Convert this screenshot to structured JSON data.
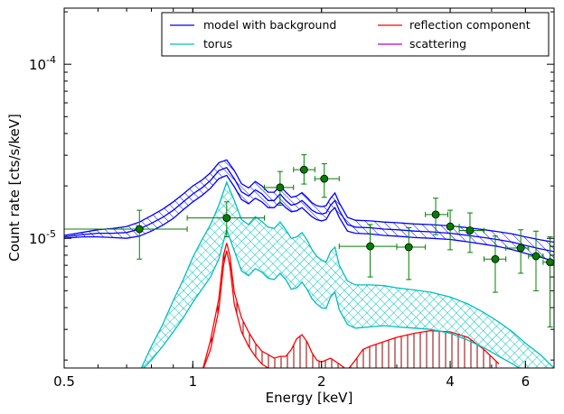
{
  "chart_data": {
    "type": "line",
    "xlabel": "Energy [keV]",
    "ylabel": "Count rate [cts/s/keV]",
    "xscale": "log",
    "yscale": "log",
    "xlim": [
      0.5,
      7.0
    ],
    "ylim": [
      1.8e-06,
      0.00021
    ],
    "x_ticks": [
      {
        "value": 0.5,
        "label": "0.5"
      },
      {
        "value": 1,
        "label": "1"
      },
      {
        "value": 2,
        "label": "2"
      },
      {
        "value": 4,
        "label": "4"
      },
      {
        "value": 6,
        "label": "6"
      }
    ],
    "y_ticks": [
      {
        "value": 1e-05,
        "base": "10",
        "exp": "-5"
      },
      {
        "value": 0.0001,
        "base": "10",
        "exp": "-4"
      }
    ],
    "legend": {
      "placement": "top-right",
      "columns": 2,
      "entries": [
        {
          "label": "model with background",
          "color": "#0000ff"
        },
        {
          "label": "reflection component",
          "color": "#ff0000"
        },
        {
          "label": "torus",
          "color": "#00bfbf"
        },
        {
          "label": "scattering",
          "color": "#bf00bf"
        }
      ]
    },
    "series": [
      {
        "key": "model",
        "color": "#0000ff",
        "hatch": "diagonal",
        "x": [
          0.5,
          0.55,
          0.6,
          0.65,
          0.7,
          0.75,
          0.8,
          0.85,
          0.9,
          0.95,
          1.0,
          1.05,
          1.1,
          1.15,
          1.2,
          1.25,
          1.3,
          1.35,
          1.4,
          1.45,
          1.5,
          1.55,
          1.6,
          1.65,
          1.7,
          1.75,
          1.8,
          1.85,
          1.9,
          1.95,
          2.0,
          2.05,
          2.1,
          2.15,
          2.2,
          2.3,
          2.4,
          2.6,
          2.8,
          3.0,
          3.3,
          3.6,
          4.0,
          4.4,
          4.8,
          5.2,
          5.6,
          6.0,
          6.5,
          7.0
        ],
        "mid": [
          1.02e-05,
          1.05e-05,
          1.07e-05,
          1.07e-05,
          1.08e-05,
          1.13e-05,
          1.22e-05,
          1.32e-05,
          1.45e-05,
          1.62e-05,
          1.8e-05,
          1.95e-05,
          2.15e-05,
          2.45e-05,
          2.55e-05,
          2.2e-05,
          1.85e-05,
          1.75e-05,
          1.9e-05,
          1.8e-05,
          1.65e-05,
          1.65e-05,
          1.8e-05,
          1.65e-05,
          1.55e-05,
          1.58e-05,
          1.65e-05,
          1.55e-05,
          1.45e-05,
          1.4e-05,
          1.38e-05,
          1.4e-05,
          1.55e-05,
          1.65e-05,
          1.45e-05,
          1.2e-05,
          1.16e-05,
          1.15e-05,
          1.13e-05,
          1.12e-05,
          1.1e-05,
          1.09e-05,
          1.07e-05,
          1.04e-05,
          1.01e-05,
          9.8e-06,
          9.5e-06,
          9.1e-06,
          8.7e-06,
          8.4e-06
        ],
        "lo": [
          1e-05,
          1.02e-05,
          1.02e-05,
          1.01e-05,
          1e-05,
          1.03e-05,
          1.1e-05,
          1.19e-05,
          1.3e-05,
          1.46e-05,
          1.62e-05,
          1.76e-05,
          1.94e-05,
          2.2e-05,
          2.3e-05,
          1.98e-05,
          1.67e-05,
          1.58e-05,
          1.7e-05,
          1.62e-05,
          1.5e-05,
          1.5e-05,
          1.62e-05,
          1.5e-05,
          1.42e-05,
          1.44e-05,
          1.5e-05,
          1.41e-05,
          1.33e-05,
          1.28e-05,
          1.26e-05,
          1.28e-05,
          1.42e-05,
          1.5e-05,
          1.32e-05,
          1.1e-05,
          1.07e-05,
          1.06e-05,
          1.04e-05,
          1.03e-05,
          1.01e-05,
          1e-05,
          9.85e-06,
          9.55e-06,
          9.25e-06,
          8.95e-06,
          8.6e-06,
          8.2e-06,
          7.8e-06,
          7.4e-06
        ],
        "hi": [
          1.04e-05,
          1.08e-05,
          1.12e-05,
          1.14e-05,
          1.17e-05,
          1.24e-05,
          1.35e-05,
          1.47e-05,
          1.62e-05,
          1.8e-05,
          2e-05,
          2.16e-05,
          2.38e-05,
          2.72e-05,
          2.82e-05,
          2.45e-05,
          2.06e-05,
          1.95e-05,
          2.12e-05,
          2e-05,
          1.84e-05,
          1.84e-05,
          2e-05,
          1.84e-05,
          1.72e-05,
          1.75e-05,
          1.83e-05,
          1.72e-05,
          1.6e-05,
          1.54e-05,
          1.52e-05,
          1.54e-05,
          1.7e-05,
          1.82e-05,
          1.6e-05,
          1.32e-05,
          1.27e-05,
          1.26e-05,
          1.24e-05,
          1.23e-05,
          1.21e-05,
          1.2e-05,
          1.18e-05,
          1.15e-05,
          1.12e-05,
          1.09e-05,
          1.06e-05,
          1.02e-05,
          9.8e-06,
          9.5e-06
        ]
      },
      {
        "key": "torus",
        "color": "#00bfbf",
        "hatch": "crosshatch",
        "x": [
          0.75,
          0.8,
          0.85,
          0.9,
          0.95,
          1.0,
          1.05,
          1.1,
          1.15,
          1.2,
          1.25,
          1.3,
          1.35,
          1.4,
          1.45,
          1.5,
          1.55,
          1.6,
          1.65,
          1.7,
          1.75,
          1.8,
          1.85,
          1.9,
          1.95,
          2.0,
          2.05,
          2.1,
          2.15,
          2.2,
          2.3,
          2.4,
          2.6,
          2.8,
          3.0,
          3.3,
          3.6,
          4.0,
          4.4,
          4.8,
          5.2,
          5.6,
          6.0,
          6.5,
          7.0
        ],
        "lo": [
          1.7e-06,
          2e-06,
          2.4e-06,
          2.9e-06,
          3.5e-06,
          4.3e-06,
          5.1e-06,
          6e-06,
          7.6e-06,
          1.12e-05,
          8.5e-06,
          6.5e-06,
          6.1e-06,
          6.7e-06,
          6.4e-06,
          5.9e-06,
          5.8e-06,
          6.3e-06,
          5.8e-06,
          5.1e-06,
          5.2e-06,
          5.6e-06,
          5.1e-06,
          4.5e-06,
          4.2e-06,
          4e-06,
          3.95e-06,
          4.6e-06,
          4.9e-06,
          3.9e-06,
          3.2e-06,
          3.05e-06,
          3.1e-06,
          3.15e-06,
          3.1e-06,
          3.05e-06,
          3e-06,
          2.85e-06,
          2.6e-06,
          2.35e-06,
          2.1e-06,
          1.9e-06,
          1.7e-06,
          1.5e-06,
          1.3e-06
        ],
        "hi": [
          1.7e-06,
          2.4e-06,
          3.2e-06,
          4.4e-06,
          5.8e-06,
          7.8e-06,
          9.8e-06,
          1.2e-05,
          1.55e-05,
          2.1e-05,
          1.65e-05,
          1.28e-05,
          1.2e-05,
          1.33e-05,
          1.25e-05,
          1.16e-05,
          1.14e-05,
          1.24e-05,
          1.12e-05,
          1e-05,
          1.02e-05,
          1.08e-05,
          9.8e-06,
          8.6e-06,
          7.9e-06,
          7.5e-06,
          7.3e-06,
          8.4e-06,
          8.9e-06,
          7e-06,
          5.7e-06,
          5.4e-06,
          5.4e-06,
          5.35e-06,
          5.2e-06,
          5.05e-06,
          4.9e-06,
          4.6e-06,
          4.2e-06,
          3.75e-06,
          3.3e-06,
          2.9e-06,
          2.5e-06,
          2.15e-06,
          1.8e-06
        ]
      },
      {
        "key": "reflection",
        "color": "#ff0000",
        "hatch": "vertical",
        "x": [
          1.05,
          1.1,
          1.15,
          1.18,
          1.2,
          1.22,
          1.25,
          1.3,
          1.35,
          1.4,
          1.45,
          1.5,
          1.55,
          1.6,
          1.65,
          1.7,
          1.75,
          1.8,
          1.85,
          1.9,
          1.95,
          2.0,
          2.1,
          2.2,
          2.3,
          2.4,
          2.5,
          2.6,
          2.8,
          3.0,
          3.3,
          3.6,
          4.0,
          4.4,
          4.8,
          5.2
        ],
        "lo": [
          1.7e-06,
          2.3e-06,
          3.9e-06,
          7e-06,
          8.5e-06,
          7e-06,
          4.2e-06,
          2.9e-06,
          2.4e-06,
          2.1e-06,
          1.9e-06,
          1.8e-06,
          1.75e-06,
          1.7e-06,
          1.7e-06,
          1.7e-06,
          1.7e-06,
          1.7e-06,
          1.7e-06,
          1.7e-06,
          1.7e-06,
          1.7e-06,
          1.7e-06,
          1.7e-06,
          1.7e-06,
          1.7e-06,
          1.7e-06,
          1.7e-06,
          1.7e-06,
          1.7e-06,
          1.7e-06,
          1.7e-06,
          1.7e-06,
          1.7e-06,
          1.7e-06,
          1.7e-06
        ],
        "hi": [
          1.7e-06,
          2.6e-06,
          4.5e-06,
          8e-06,
          9.4e-06,
          8e-06,
          4.9e-06,
          3.5e-06,
          2.9e-06,
          2.5e-06,
          2.25e-06,
          2.15e-06,
          2.05e-06,
          2.1e-06,
          2.1e-06,
          2.3e-06,
          2.65e-06,
          2.8e-06,
          2.55e-06,
          2.2e-06,
          2e-06,
          1.95e-06,
          2.05e-06,
          1.9e-06,
          1.75e-06,
          2e-06,
          2.3e-06,
          2.4e-06,
          2.55e-06,
          2.7e-06,
          2.85e-06,
          2.95e-06,
          2.9e-06,
          2.7e-06,
          2.3e-06,
          1.9e-06
        ]
      }
    ],
    "data_points": [
      {
        "x": 0.75,
        "y": 1.13e-05,
        "xerr": [
          0.5,
          0.97
        ],
        "yerr": [
          7.6e-06,
          1.45e-05
        ]
      },
      {
        "x": 1.2,
        "y": 1.31e-05,
        "xerr": [
          0.97,
          1.47
        ],
        "yerr": [
          1.02e-05,
          1.62e-05
        ]
      },
      {
        "x": 1.6,
        "y": 1.96e-05,
        "xerr": [
          1.47,
          1.72
        ],
        "yerr": [
          1.55e-05,
          2.42e-05
        ]
      },
      {
        "x": 1.82,
        "y": 2.48e-05,
        "xerr": [
          1.72,
          1.93
        ],
        "yerr": [
          2.05e-05,
          3.02e-05
        ]
      },
      {
        "x": 2.03,
        "y": 2.2e-05,
        "xerr": [
          1.93,
          2.2
        ],
        "yerr": [
          1.72e-05,
          2.68e-05
        ]
      },
      {
        "x": 2.6,
        "y": 9e-06,
        "xerr": [
          2.2,
          3.0
        ],
        "yerr": [
          6e-06,
          1.2e-05
        ]
      },
      {
        "x": 3.2,
        "y": 8.9e-06,
        "xerr": [
          3.0,
          3.5
        ],
        "yerr": [
          5.8e-06,
          1.15e-05
        ]
      },
      {
        "x": 3.7,
        "y": 1.37e-05,
        "xerr": [
          3.5,
          3.95
        ],
        "yerr": [
          1.05e-05,
          1.7e-05
        ]
      },
      {
        "x": 4.0,
        "y": 1.17e-05,
        "xerr": [
          3.95,
          4.2
        ],
        "yerr": [
          8.6e-06,
          1.45e-05
        ]
      },
      {
        "x": 4.45,
        "y": 1.11e-05,
        "xerr": [
          4.2,
          4.8
        ],
        "yerr": [
          8.3e-06,
          1.4e-05
        ]
      },
      {
        "x": 5.1,
        "y": 7.6e-06,
        "xerr": [
          4.8,
          5.4
        ],
        "yerr": [
          4.9e-06,
          1.03e-05
        ]
      },
      {
        "x": 5.85,
        "y": 8.8e-06,
        "xerr": [
          5.4,
          6.1
        ],
        "yerr": [
          6.3e-06,
          1.12e-05
        ]
      },
      {
        "x": 6.35,
        "y": 7.9e-06,
        "xerr": [
          6.1,
          6.6
        ],
        "yerr": [
          5e-06,
          1.1e-05
        ]
      },
      {
        "x": 6.85,
        "y": 7.3e-06,
        "xerr": [
          6.6,
          7.0
        ],
        "yerr": [
          3.1e-06,
          1.02e-05
        ]
      }
    ],
    "data_point_style": {
      "marker_color": "#008000",
      "errorbar_color": "#008000"
    },
    "grid": false
  }
}
